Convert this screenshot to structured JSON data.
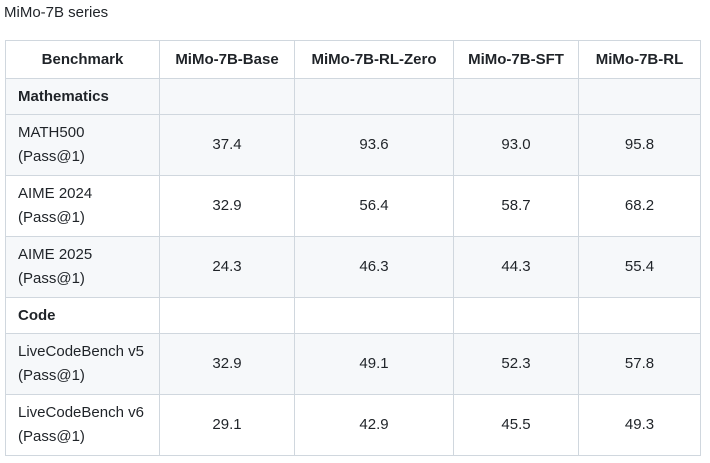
{
  "caption": "MiMo-7B series",
  "table": {
    "headers": [
      "Benchmark",
      "MiMo-7B-Base",
      "MiMo-7B-RL-Zero",
      "MiMo-7B-SFT",
      "MiMo-7B-RL"
    ],
    "sections": [
      {
        "name": "Mathematics",
        "rows": [
          {
            "benchmark": "MATH500",
            "metric": "(Pass@1)",
            "values": [
              "37.4",
              "93.6",
              "93.0",
              "95.8"
            ]
          },
          {
            "benchmark": "AIME 2024",
            "metric": "(Pass@1)",
            "values": [
              "32.9",
              "56.4",
              "58.7",
              "68.2"
            ]
          },
          {
            "benchmark": "AIME 2025",
            "metric": "(Pass@1)",
            "values": [
              "24.3",
              "46.3",
              "44.3",
              "55.4"
            ]
          }
        ]
      },
      {
        "name": "Code",
        "rows": [
          {
            "benchmark": "LiveCodeBench v5",
            "metric": "(Pass@1)",
            "values": [
              "32.9",
              "49.1",
              "52.3",
              "57.8"
            ]
          },
          {
            "benchmark": "LiveCodeBench v6",
            "metric": "(Pass@1)",
            "values": [
              "29.1",
              "42.9",
              "45.5",
              "49.3"
            ]
          }
        ]
      }
    ]
  }
}
